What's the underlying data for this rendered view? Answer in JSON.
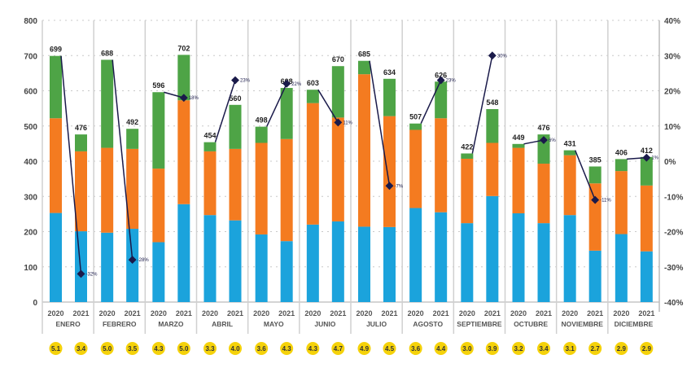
{
  "chart_data": {
    "type": "bar",
    "stacked": true,
    "title": "",
    "xlabel": "",
    "ylabel": "",
    "ylim": [
      0,
      800
    ],
    "yticks": [
      0,
      100,
      200,
      300,
      400,
      500,
      600,
      700,
      800
    ],
    "y2lim": [
      -40,
      40
    ],
    "y2ticks": [
      "-40%",
      "-30%",
      "-20%",
      "-10%",
      "0%",
      "10%",
      "20%",
      "30%",
      "40%"
    ],
    "grid": true,
    "months": [
      "ENERO",
      "FEBRERO",
      "MARZO",
      "ABRIL",
      "MAYO",
      "JUNIO",
      "JULIO",
      "AGOSTO",
      "SEPTIEMBRE",
      "OCTUBRE",
      "NOVIEMBRE",
      "DICIEMBRE"
    ],
    "years": [
      "2020",
      "2021"
    ],
    "colors": {
      "blue": "#1ba3dc",
      "orange": "#f47b20",
      "green": "#4ea446",
      "line": "#1a1a4a",
      "badge": "#f5d20a"
    },
    "series": [
      {
        "values": [
          253,
          201,
          197,
          208,
          170,
          278,
          247,
          232,
          192,
          173,
          220,
          229,
          214,
          213,
          267,
          255,
          224,
          301,
          252,
          224,
          247,
          146,
          193,
          144
        ]
      },
      {
        "values": [
          269,
          227,
          241,
          227,
          209,
          295,
          181,
          203,
          260,
          290,
          345,
          295,
          433,
          315,
          222,
          267,
          183,
          151,
          186,
          169,
          170,
          191,
          179,
          187
        ]
      },
      {
        "values": [
          177,
          48,
          250,
          57,
          217,
          129,
          26,
          125,
          46,
          145,
          38,
          146,
          38,
          106,
          18,
          104,
          15,
          96,
          11,
          83,
          14,
          48,
          34,
          81
        ]
      }
    ],
    "totals": [
      "699",
      "476",
      "688",
      "492",
      "596",
      "702",
      "454",
      "560",
      "498",
      "608",
      "603",
      "670",
      "685",
      "634",
      "507",
      "626",
      "422",
      "548",
      "449",
      "476",
      "431",
      "385",
      "406",
      "412"
    ],
    "change_pct": [
      -32,
      -28,
      18,
      23,
      22,
      11,
      -7,
      23,
      30,
      6,
      -11,
      1
    ],
    "change_labels": [
      "-32%",
      "-28%",
      "18%",
      "23%",
      "22%",
      "11%",
      "-7%",
      "23%",
      "30%",
      "6%",
      "-11%",
      "1%"
    ],
    "badges": [
      "5.1",
      "3.4",
      "5.0",
      "3.5",
      "4.3",
      "5.0",
      "3.3",
      "4.0",
      "3.6",
      "4.3",
      "4.3",
      "4.7",
      "4.9",
      "4.5",
      "3.6",
      "4.4",
      "3.0",
      "3.9",
      "3.2",
      "3.4",
      "3.1",
      "2.7",
      "2.9",
      "2.9"
    ]
  }
}
